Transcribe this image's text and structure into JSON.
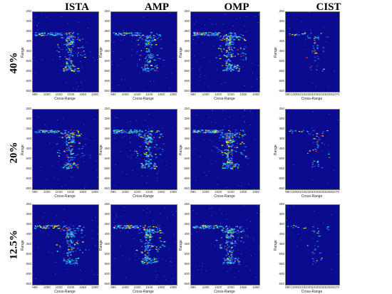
{
  "columns": [
    "ISTA",
    "AMP",
    "OMP",
    "CIST"
  ],
  "rows": [
    "40%",
    "20%",
    "12.5%"
  ],
  "axes": {
    "xlabel": "Cross-Range",
    "ylabel": "Range",
    "yticks": [
      "250",
      "300",
      "350",
      "400",
      "450",
      "500",
      "550",
      "600",
      "650"
    ],
    "xticks_default": [
      "980",
      "1000",
      "1020",
      "1040",
      "1060",
      "1080"
    ],
    "xticks_cist": [
      "980",
      "1000",
      "1010",
      "1020",
      "1030",
      "1040",
      "1050",
      "1070"
    ]
  },
  "colors": {
    "background": "#0b0b8f",
    "scatter_dim": "#2f6fff",
    "scatter_mid": "#22d3d3",
    "scatter_bright": "#e8f02c",
    "scatter_hot": "#e83a18"
  }
}
